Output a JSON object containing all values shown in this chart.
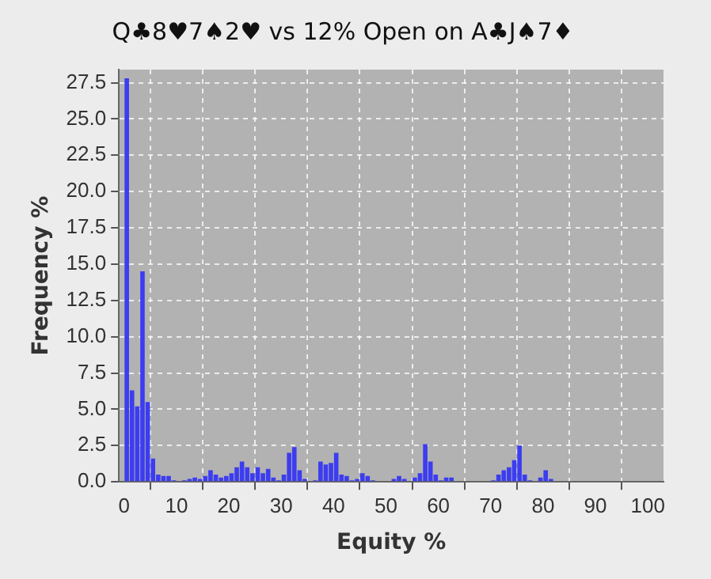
{
  "chart_data": {
    "type": "histogram",
    "title": "Q♣8♥7♠2♥ vs 12% Open on A♣J♠7♦",
    "xlabel": "Equity %",
    "ylabel": "Frequency %",
    "bins": [
      0,
      1,
      2,
      3,
      4,
      5,
      6,
      7,
      8,
      9,
      10,
      11,
      12,
      13,
      14,
      15,
      16,
      17,
      18,
      19,
      20,
      21,
      22,
      23,
      24,
      25,
      26,
      27,
      28,
      29,
      30,
      31,
      32,
      33,
      34,
      35,
      36,
      37,
      38,
      39,
      40,
      41,
      42,
      43,
      44,
      45,
      46,
      47,
      48,
      49,
      50,
      51,
      52,
      53,
      54,
      55,
      56,
      57,
      58,
      59,
      60,
      61,
      62,
      63,
      64,
      65,
      66,
      67,
      68,
      69,
      70,
      71,
      72,
      73,
      74,
      75,
      76,
      77,
      78,
      79,
      80,
      81,
      82
    ],
    "values": [
      27.8,
      6.3,
      5.2,
      14.5,
      5.5,
      1.6,
      0.5,
      0.4,
      0.4,
      0.1,
      0,
      0.1,
      0.2,
      0.3,
      0.2,
      0.4,
      0.8,
      0.5,
      0.3,
      0.4,
      0.6,
      1.0,
      1.4,
      1.0,
      0.6,
      1.0,
      0.6,
      0.9,
      0.3,
      0.1,
      0.5,
      2.0,
      2.4,
      0.8,
      0.2,
      0,
      0.1,
      1.4,
      1.2,
      1.3,
      2.0,
      0.5,
      0.4,
      0.1,
      0.2,
      0.6,
      0.4,
      0.1,
      0,
      0,
      0,
      0.2,
      0.4,
      0.2,
      0,
      0.3,
      0.6,
      2.6,
      1.4,
      0.5,
      0.1,
      0.3,
      0.3,
      0,
      0,
      0,
      0,
      0,
      0,
      0,
      0.1,
      0.5,
      0.8,
      1.0,
      1.5,
      2.5,
      0.5,
      0.1,
      0,
      0.3,
      0.8,
      0.2
    ],
    "color": "#3c3cf0",
    "xlim": [
      -1,
      103
    ],
    "ylim": [
      0,
      28.4
    ],
    "xticks": [
      0,
      10,
      20,
      30,
      40,
      50,
      60,
      70,
      80,
      90,
      100
    ],
    "yticks": [
      {
        "value": 0,
        "label": "0.0"
      },
      {
        "value": 2.5,
        "label": "2.5"
      },
      {
        "value": 5,
        "label": "5.0"
      },
      {
        "value": 7.5,
        "label": "7.5"
      },
      {
        "value": 10,
        "label": "10.0"
      },
      {
        "value": 12.5,
        "label": "12.5"
      },
      {
        "value": 15,
        "label": "15.0"
      },
      {
        "value": 17.5,
        "label": "17.5"
      },
      {
        "value": 20,
        "label": "20.0"
      },
      {
        "value": 22.5,
        "label": "22.5"
      },
      {
        "value": 25,
        "label": "25.0"
      },
      {
        "value": 27.5,
        "label": "27.5"
      }
    ],
    "grid": true,
    "legend": false
  }
}
